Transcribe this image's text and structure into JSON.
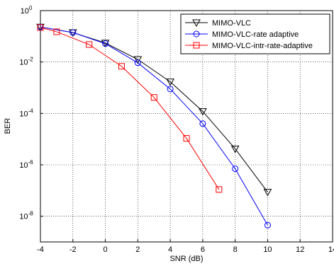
{
  "chart_data": {
    "type": "line",
    "xlabel": "SNR (dB)",
    "ylabel": "BER",
    "log_y": true,
    "grid": true,
    "legend": "upper right",
    "xlim": [
      -4,
      14
    ],
    "xticks": [
      -4,
      -2,
      0,
      2,
      4,
      6,
      8,
      10,
      12,
      14
    ],
    "ylim": [
      1e-09,
      1
    ],
    "yticks": [
      {
        "value": 1,
        "label": "10^0"
      },
      {
        "value": 0.01,
        "label": "10^-2"
      },
      {
        "value": 0.0001,
        "label": "10^-4"
      },
      {
        "value": 1e-06,
        "label": "10^-6"
      },
      {
        "value": 1e-08,
        "label": "10^-8"
      }
    ],
    "series": [
      {
        "name": "MIMO-VLC",
        "color": "#000000",
        "marker": "triangle-down",
        "x": [
          -4,
          -2,
          0,
          2,
          4,
          6,
          8,
          10
        ],
        "values": [
          0.23,
          0.14,
          0.055,
          0.0126,
          0.0017,
          0.00012,
          4.2e-06,
          8.7e-08
        ]
      },
      {
        "name": "MIMO-VLC-rate adaptive",
        "color": "#0000ff",
        "marker": "circle",
        "x": [
          -4,
          -2,
          0,
          2,
          4,
          6,
          8,
          10
        ],
        "values": [
          0.23,
          0.14,
          0.052,
          0.0093,
          0.00089,
          4e-05,
          7e-07,
          4.5e-09
        ]
      },
      {
        "name": "MIMO-VLC-intr-rate-adaptive",
        "color": "#ff0000",
        "marker": "square",
        "x": [
          -4,
          -3,
          -1,
          1,
          3,
          5,
          7
        ],
        "values": [
          0.22,
          0.15,
          0.048,
          0.0068,
          0.00042,
          1.07e-05,
          1.1e-07
        ]
      }
    ]
  }
}
